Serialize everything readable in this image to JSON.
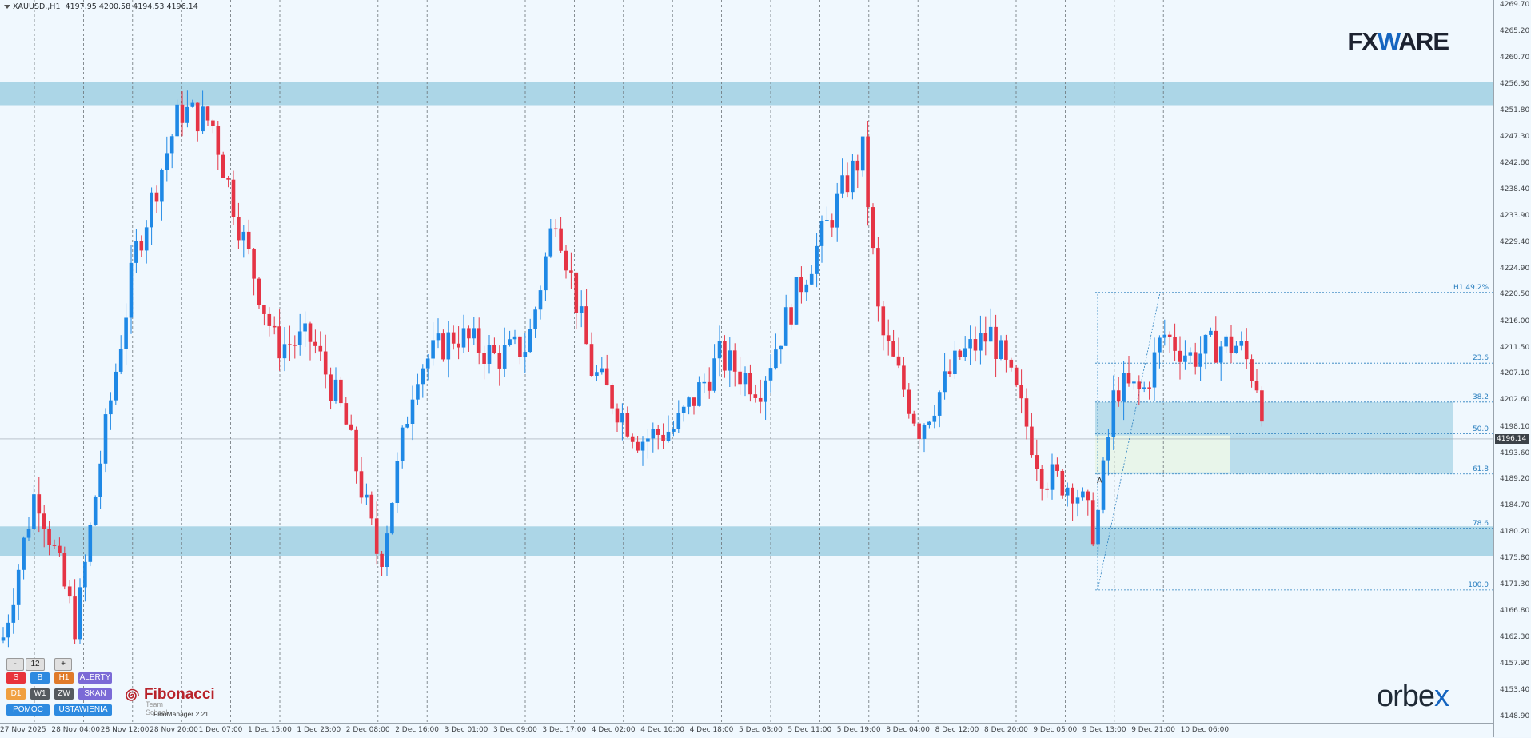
{
  "header": {
    "symbol": "XAUUSD.,H1",
    "ohlc": "4197.95 4200.58 4194.53 4196.14"
  },
  "logos": {
    "fxware_left": "FX",
    "fxware_w": "W",
    "fxware_right": "ARE",
    "orbex_left": "orbe",
    "orbex_x": "x"
  },
  "price_axis": [
    "4269.70",
    "4265.20",
    "4260.70",
    "4256.30",
    "4251.80",
    "4247.30",
    "4242.80",
    "4238.40",
    "4233.90",
    "4229.40",
    "4224.90",
    "4220.50",
    "4216.00",
    "4211.50",
    "4207.10",
    "4202.60",
    "4198.10",
    "4193.60",
    "4189.20",
    "4184.70",
    "4180.20",
    "4175.80",
    "4171.30",
    "4166.80",
    "4162.30",
    "4157.90",
    "4153.40",
    "4148.90"
  ],
  "current_price": "4196.14",
  "time_axis": [
    "27 Nov 2025",
    "28 Nov 04:00",
    "28 Nov 12:00",
    "28 Nov 20:00",
    "1 Dec 07:00",
    "1 Dec 15:00",
    "1 Dec 23:00",
    "2 Dec 08:00",
    "2 Dec 16:00",
    "3 Dec 01:00",
    "3 Dec 09:00",
    "3 Dec 17:00",
    "4 Dec 02:00",
    "4 Dec 10:00",
    "4 Dec 18:00",
    "5 Dec 03:00",
    "5 Dec 11:00",
    "5 Dec 19:00",
    "8 Dec 04:00",
    "8 Dec 12:00",
    "8 Dec 20:00",
    "9 Dec 05:00",
    "9 Dec 13:00",
    "9 Dec 21:00",
    "10 Dec 06:00"
  ],
  "fibonacci": {
    "header_label": "H1 49.2%",
    "anchor_label": "A",
    "levels": [
      {
        "label": "23.6",
        "price": 4209.0
      },
      {
        "label": "38.2",
        "price": 4202.4
      },
      {
        "label": "50.0",
        "price": 4197.0
      },
      {
        "label": "61.8",
        "price": 4190.2
      },
      {
        "label": "78.6",
        "price": 4181.0
      },
      {
        "label": "100.0",
        "price": 4170.5
      }
    ],
    "high_price": 4221.0
  },
  "zones": [
    {
      "from": 4252.8,
      "to": 4256.8
    },
    {
      "from": 4176.3,
      "to": 4181.3
    }
  ],
  "panel": {
    "minus": "-",
    "count": "12",
    "plus": "+",
    "buttons": [
      {
        "label": "S",
        "color": "#e8333a"
      },
      {
        "label": "B",
        "color": "#2d8ae0"
      },
      {
        "label": "H1",
        "color": "#e07b2a"
      },
      {
        "label": "ALERTY",
        "color": "#7b6ad6"
      },
      {
        "label": "D1",
        "color": "#f0a040"
      },
      {
        "label": "W1",
        "color": "#555a5f"
      },
      {
        "label": "ZW",
        "color": "#555a5f"
      },
      {
        "label": "SKAN",
        "color": "#7b6ad6"
      },
      {
        "label": "POMOC",
        "color": "#2d8ae0"
      },
      {
        "label": "USTAWIENIA",
        "color": "#2d8ae0"
      }
    ]
  },
  "fib_tool": {
    "name": "Fibonacci",
    "subtitle": "Team School",
    "version": "FiboManager 2.21"
  },
  "colors": {
    "bull": "#1e88e5",
    "bear": "#e53445",
    "zone": "#a8d4e6",
    "grid": "#6c7378"
  }
}
